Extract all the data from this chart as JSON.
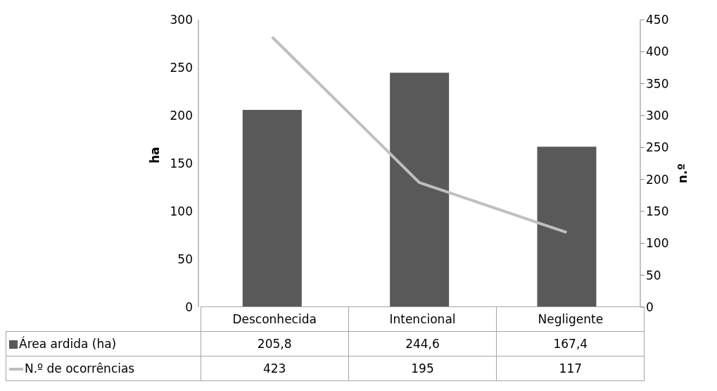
{
  "chart_data": {
    "type": "bar",
    "categories": [
      "Desconhecida",
      "Intencional",
      "Negligente"
    ],
    "series": [
      {
        "name": "Área ardida (ha)",
        "color": "#595959",
        "values": [
          205.8,
          244.6,
          167.4
        ],
        "value_labels": [
          "205,8",
          "244,6",
          "167,4"
        ]
      },
      {
        "name": "N.º de ocorrências",
        "type": "line",
        "axis": "y2",
        "color": "#bfbfbf",
        "values": [
          423,
          195,
          117
        ],
        "value_labels": [
          "423",
          "195",
          "117"
        ]
      }
    ],
    "ylabel": "ha",
    "y2label": "n.º",
    "ylim": [
      0,
      300
    ],
    "yticks": [
      0,
      50,
      100,
      150,
      200,
      250,
      300
    ],
    "y2lim": [
      0,
      450
    ],
    "y2ticks": [
      0,
      50,
      100,
      150,
      200,
      250,
      300,
      350,
      400,
      450
    ],
    "legend": "bottom",
    "marker": "none"
  }
}
